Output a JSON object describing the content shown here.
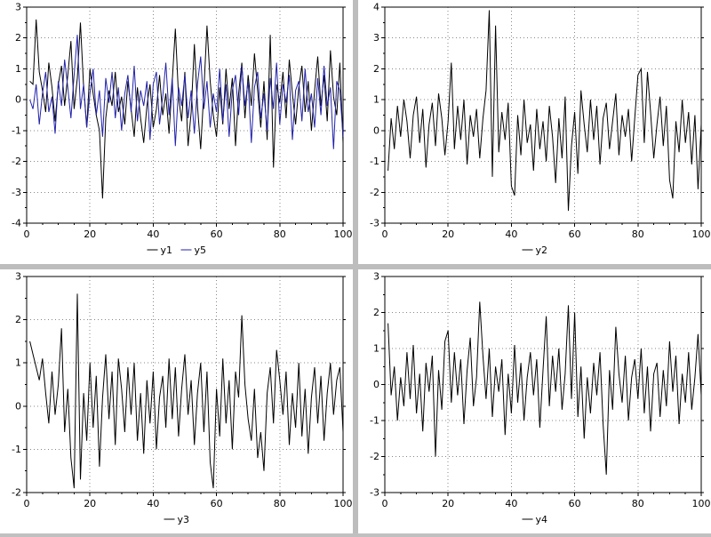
{
  "ui": {
    "background": "#ffffff",
    "separator_color": "#bdbdbd",
    "frame_color": "#000000",
    "grid_color": "#888888",
    "tick_label_color": "#000000"
  },
  "chart_data": [
    {
      "type": "line",
      "title": "",
      "xlabel": "",
      "ylabel": "",
      "x_range": [
        0,
        100
      ],
      "y_range": [
        -4,
        3
      ],
      "x_major": 20,
      "x_minor": 5,
      "y_major": 1,
      "grid": true,
      "legend_position": "bottom",
      "x_tick_labels": [
        "0",
        "20",
        "40",
        "60",
        "80",
        "100"
      ],
      "y_tick_labels": [
        "-4",
        "-3",
        "-2",
        "-1",
        "0",
        "1",
        "2",
        "3"
      ],
      "x_start": 1,
      "x_step": 1,
      "series": [
        {
          "name": "y1",
          "color": "#000000",
          "values": [
            0.6,
            0.5,
            2.6,
            0.9,
            0.3,
            -0.4,
            1.2,
            0.4,
            -0.7,
            0.5,
            1.1,
            -0.2,
            0.8,
            1.9,
            -0.3,
            0.7,
            2.5,
            0.4,
            -0.9,
            1.0,
            0.2,
            -0.5,
            -1.0,
            -3.2,
            -0.6,
            0.3,
            -0.2,
            0.9,
            -0.4,
            0.1,
            -0.8,
            0.6,
            -0.3,
            -1.2,
            0.4,
            -0.6,
            -1.4,
            -0.2,
            0.5,
            -0.9,
            -0.3,
            0.8,
            -0.5,
            0.2,
            -1.1,
            0.6,
            2.3,
            0.1,
            -0.7,
            0.9,
            -1.5,
            -0.4,
            1.8,
            -0.2,
            -1.6,
            0.3,
            2.4,
            0.6,
            -0.5,
            -1.2,
            0.4,
            -0.8,
            1.0,
            -0.3,
            0.7,
            -1.5,
            0.2,
            1.2,
            -0.6,
            0.8,
            -0.2,
            1.5,
            0.3,
            -0.9,
            0.6,
            -1.3,
            2.1,
            -2.2,
            0.5,
            -0.1,
            0.9,
            -0.6,
            1.3,
            0.2,
            -0.8,
            0.4,
            1.1,
            -0.4,
            0.6,
            -1.0,
            0.3,
            1.4,
            -0.2,
            0.8,
            -0.7,
            1.6,
            0.1,
            -0.5,
            1.2,
            -1.4
          ]
        },
        {
          "name": "y5",
          "color": "#2222aa",
          "values": [
            0.0,
            -0.3,
            0.5,
            -0.8,
            0.2,
            0.9,
            -0.4,
            0.1,
            -1.1,
            0.6,
            -0.2,
            1.3,
            0.4,
            -0.6,
            0.8,
            2.1,
            -0.3,
            0.5,
            -0.9,
            0.2,
            1.0,
            -0.5,
            0.3,
            -1.2,
            0.7,
            -0.1,
            0.9,
            -0.6,
            0.4,
            -1.0,
            0.2,
            0.8,
            -0.4,
            1.1,
            -0.7,
            0.3,
            -0.2,
            0.6,
            -1.3,
            0.5,
            0.9,
            -0.8,
            0.1,
            1.2,
            -0.5,
            0.7,
            -1.5,
            0.4,
            -0.2,
            0.8,
            -0.6,
            0.3,
            -1.1,
            0.5,
            1.4,
            -0.3,
            0.6,
            -0.9,
            0.2,
            -0.4,
            1.0,
            -0.7,
            0.5,
            -1.2,
            0.3,
            0.8,
            -0.5,
            1.1,
            -0.2,
            0.6,
            -1.4,
            0.4,
            0.9,
            -0.6,
            0.2,
            -1.0,
            0.7,
            -0.3,
            1.2,
            -0.8,
            0.5,
            -0.1,
            0.8,
            -1.3,
            0.3,
            0.6,
            -0.7,
            1.0,
            -0.4,
            0.2,
            -0.9,
            0.7,
            -0.5,
            1.1,
            -0.2,
            0.4,
            -1.6,
            0.6,
            0.3,
            -1.2
          ]
        }
      ]
    },
    {
      "type": "line",
      "title": "",
      "xlabel": "",
      "ylabel": "",
      "x_range": [
        0,
        100
      ],
      "y_range": [
        -3,
        4
      ],
      "x_major": 20,
      "x_minor": 5,
      "y_major": 1,
      "grid": true,
      "legend_position": "bottom",
      "x_tick_labels": [
        "0",
        "20",
        "40",
        "60",
        "80",
        "100"
      ],
      "y_tick_labels": [
        "-3",
        "-2",
        "-1",
        "0",
        "1",
        "2",
        "3",
        "4"
      ],
      "x_start": 1,
      "x_step": 1,
      "series": [
        {
          "name": "y2",
          "color": "#000000",
          "values": [
            -1.3,
            0.4,
            -0.6,
            0.8,
            -0.2,
            1.0,
            0.3,
            -0.9,
            0.5,
            1.1,
            -0.4,
            0.7,
            -1.2,
            0.2,
            0.9,
            -0.5,
            1.2,
            0.4,
            -0.8,
            0.3,
            2.2,
            -0.6,
            0.8,
            -0.3,
            1.0,
            -1.1,
            0.5,
            -0.2,
            0.7,
            -0.9,
            0.4,
            1.3,
            3.9,
            -1.5,
            3.4,
            -0.7,
            0.6,
            -0.3,
            0.9,
            -1.8,
            -2.1,
            0.5,
            -0.8,
            1.0,
            -0.4,
            0.2,
            -1.3,
            0.7,
            -0.6,
            0.3,
            -1.0,
            0.8,
            -0.2,
            -1.7,
            0.4,
            -0.9,
            1.1,
            -2.6,
            -0.5,
            0.6,
            -1.4,
            1.3,
            0.2,
            -0.7,
            1.0,
            -0.3,
            0.8,
            -1.1,
            0.4,
            0.9,
            -0.6,
            0.3,
            1.2,
            -0.8,
            0.5,
            -0.2,
            0.7,
            -1.0,
            0.4,
            1.8,
            2.0,
            -0.4,
            1.9,
            0.6,
            -0.9,
            0.2,
            1.1,
            -0.5,
            0.8,
            -1.6,
            -2.2,
            0.3,
            -0.7,
            1.0,
            -0.4,
            0.6,
            -1.1,
            0.5,
            -1.9,
            0.2
          ]
        }
      ]
    },
    {
      "type": "line",
      "title": "",
      "xlabel": "",
      "ylabel": "",
      "x_range": [
        0,
        100
      ],
      "y_range": [
        -2,
        3
      ],
      "x_major": 20,
      "x_minor": 5,
      "y_major": 1,
      "grid": true,
      "legend_position": "bottom",
      "x_tick_labels": [
        "0",
        "20",
        "40",
        "60",
        "80",
        "100"
      ],
      "y_tick_labels": [
        "-2",
        "-1",
        "0",
        "1",
        "2",
        "3"
      ],
      "x_start": 1,
      "x_step": 1,
      "series": [
        {
          "name": "y3",
          "color": "#000000",
          "values": [
            1.5,
            1.2,
            0.9,
            0.6,
            1.1,
            0.3,
            -0.4,
            0.8,
            -0.2,
            0.5,
            1.8,
            -0.6,
            0.4,
            -1.2,
            -1.9,
            2.6,
            -1.7,
            0.3,
            -0.8,
            1.0,
            -0.5,
            0.7,
            -1.4,
            0.2,
            1.2,
            -0.3,
            0.8,
            -0.9,
            1.1,
            0.4,
            -0.6,
            0.9,
            -0.2,
            1.0,
            -0.8,
            0.3,
            -1.1,
            0.6,
            -0.4,
            0.8,
            -1.0,
            0.2,
            0.7,
            -0.5,
            1.1,
            -0.3,
            0.9,
            -0.7,
            0.4,
            1.2,
            -0.2,
            0.6,
            -0.9,
            0.3,
            1.0,
            -0.6,
            0.8,
            -1.3,
            -1.9,
            0.4,
            -0.7,
            1.1,
            -0.4,
            0.6,
            -1.0,
            0.8,
            0.2,
            2.1,
            0.5,
            -0.3,
            -0.8,
            0.4,
            -1.2,
            -0.6,
            -1.5,
            0.3,
            0.9,
            -0.4,
            1.3,
            0.6,
            -0.2,
            0.8,
            -0.9,
            0.3,
            -0.5,
            1.0,
            -0.7,
            0.4,
            -1.1,
            0.2,
            0.9,
            -0.4,
            0.7,
            -0.8,
            0.3,
            1.0,
            -0.2,
            0.6,
            0.9,
            -0.6
          ]
        }
      ]
    },
    {
      "type": "line",
      "title": "",
      "xlabel": "",
      "ylabel": "",
      "x_range": [
        0,
        100
      ],
      "y_range": [
        -3,
        3
      ],
      "x_major": 20,
      "x_minor": 5,
      "y_major": 1,
      "grid": true,
      "legend_position": "bottom",
      "x_tick_labels": [
        "0",
        "20",
        "40",
        "60",
        "80",
        "100"
      ],
      "y_tick_labels": [
        "-3",
        "-2",
        "-1",
        "0",
        "1",
        "2",
        "3"
      ],
      "x_start": 1,
      "x_step": 1,
      "series": [
        {
          "name": "y4",
          "color": "#000000",
          "values": [
            1.7,
            -0.3,
            0.5,
            -1.0,
            0.2,
            -0.6,
            0.9,
            -0.4,
            1.1,
            -0.8,
            0.3,
            -1.3,
            0.6,
            -0.2,
            0.8,
            -2.0,
            0.4,
            -0.7,
            1.2,
            1.5,
            -0.5,
            0.9,
            -0.3,
            0.7,
            -1.1,
            0.4,
            1.3,
            -0.6,
            0.2,
            2.3,
            0.8,
            -0.4,
            1.0,
            -0.9,
            0.5,
            -0.2,
            0.7,
            -1.4,
            0.3,
            -0.8,
            1.1,
            -0.5,
            0.6,
            -1.0,
            0.2,
            0.9,
            -0.3,
            0.7,
            -1.2,
            0.4,
            1.9,
            -0.6,
            0.8,
            -0.2,
            1.0,
            -0.7,
            0.3,
            2.2,
            -0.4,
            2.0,
            -0.9,
            0.5,
            -1.5,
            0.2,
            -0.8,
            0.6,
            -0.3,
            0.9,
            -1.1,
            -2.5,
            0.4,
            -0.7,
            1.6,
            0.3,
            -0.5,
            0.8,
            -1.0,
            0.2,
            0.7,
            -0.4,
            1.0,
            -0.8,
            0.5,
            -1.3,
            0.3,
            0.6,
            -0.9,
            0.4,
            -0.6,
            1.2,
            -0.2,
            0.8,
            -1.1,
            0.3,
            -0.5,
            0.9,
            -0.7,
            0.2,
            1.4,
            -0.3
          ]
        }
      ]
    }
  ]
}
